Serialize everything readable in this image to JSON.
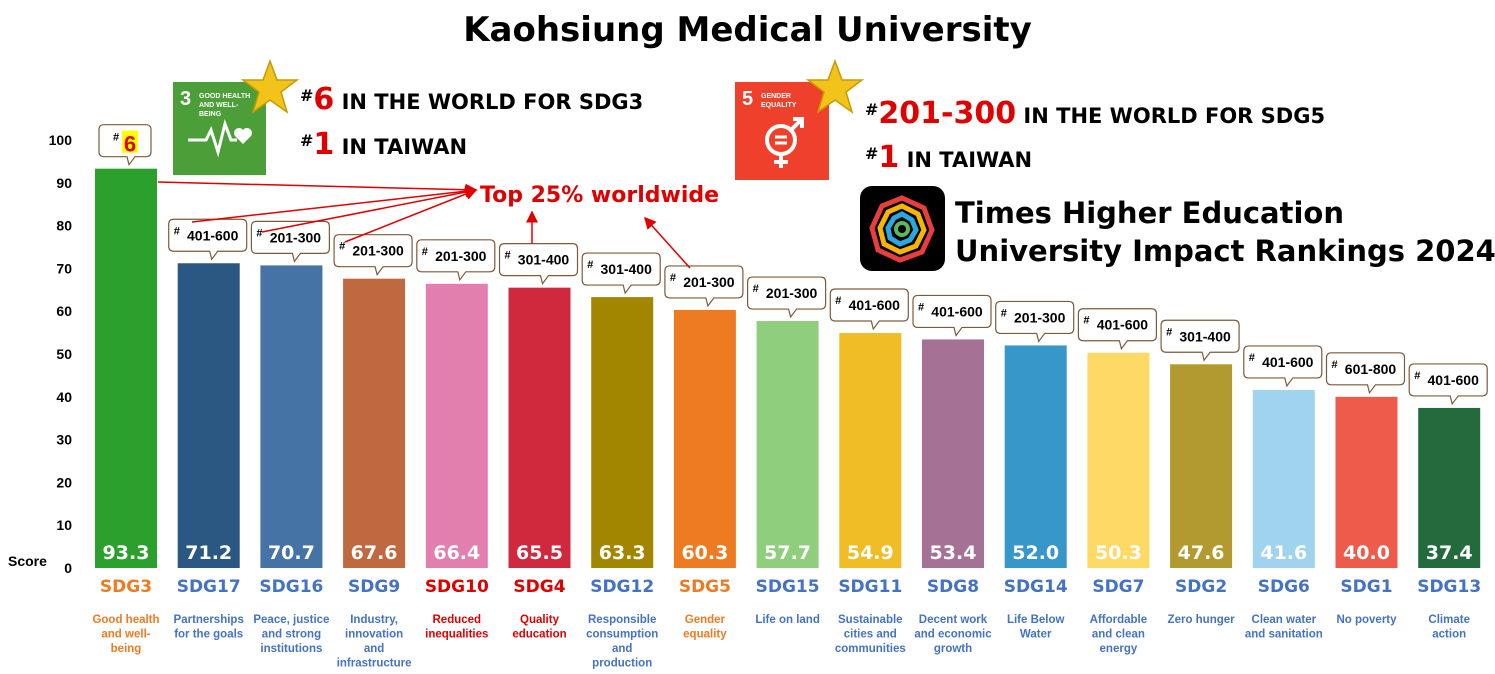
{
  "title": "Kaohsiung Medical University",
  "sdg3_tile": {
    "number": "3",
    "text": "GOOD HEALTH AND WELL-BEING",
    "color": "#4c9f38"
  },
  "sdg5_tile": {
    "number": "5",
    "text": "GENDER EQUALITY",
    "color": "#ef402b"
  },
  "sdg3_world": {
    "hash": "#",
    "rank": "6",
    "text": " IN THE WORLD FOR SDG3"
  },
  "sdg3_taiwan": {
    "hash": "#",
    "rank": "1",
    "text": " IN TAIWAN"
  },
  "sdg5_world": {
    "hash": "#",
    "rank": "201-300",
    "text": " IN THE WORLD FOR SDG5"
  },
  "sdg5_taiwan": {
    "hash": "#",
    "rank": "1",
    "text": " IN TAIWAN"
  },
  "the_line1": "Times Higher Education",
  "the_line2": "University Impact Rankings 2024",
  "top25": "Top 25% worldwide",
  "chart_data": {
    "type": "bar",
    "ylabel": "Score",
    "ylim": [
      0,
      100
    ],
    "yticks": [
      0,
      10,
      20,
      30,
      40,
      50,
      60,
      70,
      80,
      90,
      100
    ],
    "grid": false,
    "categories": [
      "SDG3",
      "SDG17",
      "SDG16",
      "SDG9",
      "SDG10",
      "SDG4",
      "SDG12",
      "SDG5",
      "SDG15",
      "SDG11",
      "SDG8",
      "SDG14",
      "SDG7",
      "SDG2",
      "SDG6",
      "SDG1",
      "SDG13"
    ],
    "values": [
      93.3,
      71.2,
      70.7,
      67.6,
      66.4,
      65.5,
      63.3,
      60.3,
      57.7,
      54.9,
      53.4,
      52.0,
      50.3,
      47.6,
      41.6,
      40.0,
      37.4
    ],
    "value_labels": [
      "93.3",
      "71.2",
      "70.7",
      "67.6",
      "66.4",
      "65.5",
      "63.3",
      "60.3",
      "57.7",
      "54.9",
      "53.4",
      "52.0",
      "50.3",
      "47.6",
      "41.6",
      "40.0",
      "37.4"
    ],
    "ranks": [
      "6",
      "401-600",
      "201-300",
      "201-300",
      "201-300",
      "301-400",
      "301-400",
      "201-300",
      "201-300",
      "401-600",
      "401-600",
      "201-300",
      "401-600",
      "301-400",
      "401-600",
      "601-800",
      "401-600"
    ],
    "descriptions": [
      [
        "Good health",
        "and well-",
        "being"
      ],
      [
        "Partnerships",
        "for the goals"
      ],
      [
        "Peace, justice",
        "and strong",
        "institutions"
      ],
      [
        "Industry,",
        "innovation",
        "and",
        "infrastructure"
      ],
      [
        "Reduced",
        "inequalities"
      ],
      [
        "Quality",
        "education"
      ],
      [
        "Responsible",
        "consumption",
        "and",
        "production"
      ],
      [
        "Gender",
        "equality"
      ],
      [
        "Life on land"
      ],
      [
        "Sustainable",
        "cities and",
        "communities"
      ],
      [
        "Decent work",
        "and economic",
        "growth"
      ],
      [
        "Life Below",
        "Water"
      ],
      [
        "Affordable",
        "and clean",
        "energy"
      ],
      [
        "Zero hunger"
      ],
      [
        "Clean water",
        "and sanitation"
      ],
      [
        "No poverty"
      ],
      [
        "Climate",
        "action"
      ]
    ],
    "bar_colors": [
      "#2ca02c",
      "#2b5783",
      "#4673a6",
      "#c0683f",
      "#e27fae",
      "#d0283c",
      "#a38600",
      "#ee7b22",
      "#8fce7c",
      "#f0bd26",
      "#a57195",
      "#3897c9",
      "#ffd966",
      "#b39a30",
      "#9fd3ee",
      "#ee5b4b",
      "#236b3c"
    ],
    "label_colors": [
      "#ee7b22",
      "#4472c4",
      "#4472c4",
      "#4472c4",
      "#e00000",
      "#e00000",
      "#4472c4",
      "#ee7b22",
      "#4472c4",
      "#4472c4",
      "#4472c4",
      "#4472c4",
      "#4472c4",
      "#4472c4",
      "#4472c4",
      "#4472c4",
      "#4472c4"
    ]
  }
}
